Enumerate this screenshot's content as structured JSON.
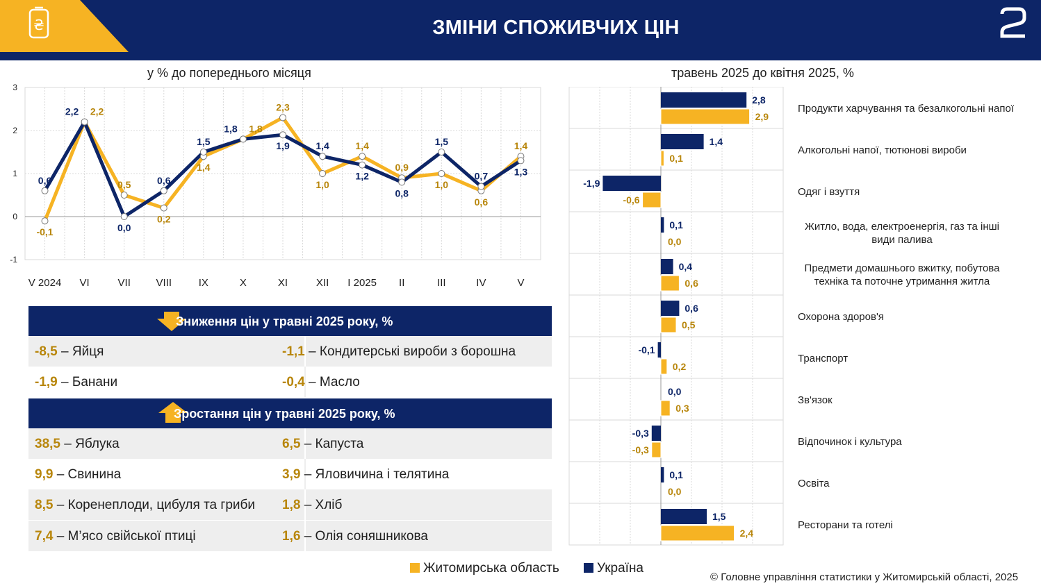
{
  "header": {
    "title": "ЗМІНИ СПОЖИВЧИХ ЦІН",
    "logo_symbol": "₴",
    "page_number": "2",
    "colors": {
      "navy": "#0d2567",
      "gold": "#f6b323"
    }
  },
  "line_chart": {
    "subtitle": "у % до попереднього місяця"
  },
  "bar_chart": {
    "subtitle": "травень 2025 до квітня 2025, %"
  },
  "chart_data": [
    {
      "type": "line",
      "title": "у % до попереднього місяця",
      "categories": [
        "V 2024",
        "VI",
        "VII",
        "VIII",
        "IX",
        "X",
        "XI",
        "XII",
        "I 2025",
        "II",
        "III",
        "IV",
        "V"
      ],
      "ylim": [
        -1,
        3
      ],
      "yticks": [
        -1,
        0,
        1,
        2,
        3
      ],
      "grid": true,
      "series": [
        {
          "name": "Житомирська область",
          "color": "#f6b323",
          "values": [
            -0.1,
            2.2,
            0.5,
            0.2,
            1.4,
            1.8,
            2.3,
            1.0,
            1.4,
            0.9,
            1.0,
            0.6,
            1.4
          ],
          "labels": [
            "-0,1",
            "2,2",
            "0,5",
            "0,2",
            "1,4",
            "1,8",
            "2,3",
            "1,0",
            "1,4",
            "0,9",
            "1,0",
            "0,6",
            "1,4"
          ]
        },
        {
          "name": "Україна",
          "color": "#0d2567",
          "values": [
            0.6,
            2.2,
            0.0,
            0.6,
            1.5,
            1.8,
            1.9,
            1.4,
            1.2,
            0.8,
            1.5,
            0.7,
            1.3
          ],
          "labels": [
            "0,6",
            "2,2",
            "0,0",
            "0,6",
            "1,5",
            "1,8",
            "1,9",
            "1,4",
            "1,2",
            "0,8",
            "1,5",
            "0,7",
            "1,3"
          ]
        }
      ]
    },
    {
      "type": "bar",
      "orientation": "horizontal",
      "title": "травень 2025 до квітня 2025, %",
      "xlim": [
        -3,
        4
      ],
      "grid": true,
      "categories": [
        "Продукти харчування та безалкогольні напої",
        "Алкогольні напої, тютюнові вироби",
        "Одяг і взуття",
        "Житло, вода, електроенергія, газ та інші види палива",
        "Предмети домашнього вжитку, побутова техніка та поточне утримання житла",
        "Охорона здоров'я",
        "Транспорт",
        "Зв'язок",
        "Відпочинок і культура",
        "Освіта",
        "Ресторани та готелі"
      ],
      "series": [
        {
          "name": "Україна",
          "color": "#0d2567",
          "values": [
            2.8,
            1.4,
            -1.9,
            0.1,
            0.4,
            0.6,
            -0.1,
            0.0,
            -0.3,
            0.1,
            1.5
          ],
          "labels": [
            "2,8",
            "1,4",
            "-1,9",
            "0,1",
            "0,4",
            "0,6",
            "-0,1",
            "0,0",
            "-0,3",
            "0,1",
            "1,5"
          ]
        },
        {
          "name": "Житомирська область",
          "color": "#f6b323",
          "values": [
            2.9,
            0.1,
            -0.6,
            0.0,
            0.6,
            0.5,
            0.2,
            0.3,
            -0.3,
            0.0,
            2.4
          ],
          "labels": [
            "2,9",
            "0,1",
            "-0,6",
            "0,0",
            "0,6",
            "0,5",
            "0,2",
            "0,3",
            "-0,3",
            "0,0",
            "2,4"
          ]
        }
      ]
    }
  ],
  "bar_labels_display": [
    [
      "Продукти харчування та безалкогольні напої"
    ],
    [
      "Алкогольні напої, тютюнові вироби"
    ],
    [
      "Одяг і взуття"
    ],
    [
      "Житло, вода, електроенергія, газ та інші",
      "види палива"
    ],
    [
      "Предмети домашнього вжитку, побутова",
      "техніка та поточне утримання житла"
    ],
    [
      "Охорона здоров'я"
    ],
    [
      "Транспорт"
    ],
    [
      "Зв'язок"
    ],
    [
      "Відпочинок і культура"
    ],
    [
      "Освіта"
    ],
    [
      "Ресторани та готелі"
    ]
  ],
  "decrease_table": {
    "title": "Зниження цін у травні 2025 року, %",
    "rows": [
      [
        {
          "value": "-8,5",
          "item": " – Яйця"
        },
        {
          "value": "-1,1",
          "item": " – Кондитерські вироби з борошна"
        }
      ],
      [
        {
          "value": "-1,9",
          "item": " – Банани"
        },
        {
          "value": "-0,4",
          "item": " – Масло"
        }
      ]
    ]
  },
  "increase_table": {
    "title": "Зростання цін у травні 2025 року, %",
    "rows": [
      [
        {
          "value": "38,5",
          "item": " – Яблука"
        },
        {
          "value": "6,5",
          "item": " – Капуста"
        }
      ],
      [
        {
          "value": "9,9",
          "item": " – Свинина"
        },
        {
          "value": "3,9",
          "item": " – Яловичина і телятина"
        }
      ],
      [
        {
          "value": "8,5",
          "item": " – Коренеплоди, цибуля та гриби"
        },
        {
          "value": "1,8",
          "item": " – Хліб"
        }
      ],
      [
        {
          "value": "7,4",
          "item": " – М’ясо свійської птиці"
        },
        {
          "value": "1,6",
          "item": " – Олія соняшникова"
        }
      ]
    ]
  },
  "legend": {
    "items": [
      {
        "label": "Житомирська область",
        "color": "#f6b323"
      },
      {
        "label": "Україна",
        "color": "#0d2567"
      }
    ]
  },
  "footer": {
    "copyright": "© Головне управління статистики у Житомирській області, 2025"
  }
}
